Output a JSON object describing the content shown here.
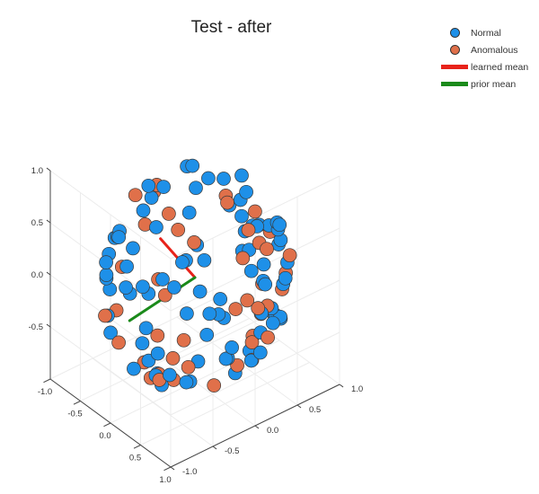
{
  "chart_data": {
    "type": "scatter3d",
    "title": "Test - after",
    "axes": {
      "x_ticks": [
        "-1.0",
        "-0.5",
        "0.0",
        "0.5",
        "1.0"
      ],
      "y_ticks": [
        "-1.0",
        "-0.5",
        "0.0",
        "0.5",
        "1.0"
      ],
      "z_ticks": [
        "-0.5",
        "0.0",
        "0.5",
        "1.0"
      ],
      "range": [
        -1.0,
        1.0
      ]
    },
    "legend": [
      {
        "label": "Normal",
        "kind": "marker",
        "color": "#1e90e8"
      },
      {
        "label": "Anomalous",
        "kind": "marker",
        "color": "#e0704a"
      },
      {
        "label": "learned mean",
        "kind": "line",
        "color": "#e8221a"
      },
      {
        "label": "prior mean",
        "kind": "line",
        "color": "#1a8a1a"
      }
    ],
    "learned_mean": {
      "from": [
        0.0,
        0.0,
        0.0
      ],
      "to": [
        -0.39,
        -0.13,
        0.26
      ],
      "color": "#e8221a"
    },
    "prior_mean": {
      "from": [
        0.0,
        0.0,
        0.0
      ],
      "to": [
        -0.16,
        -0.66,
        -0.22
      ],
      "color": "#1a8a1a"
    },
    "series": [
      {
        "name": "Normal",
        "color": "#1e90e8",
        "seed": 17,
        "count": 92
      },
      {
        "name": "Anomalous",
        "color": "#e0704a",
        "seed": 53,
        "count": 45
      }
    ]
  }
}
